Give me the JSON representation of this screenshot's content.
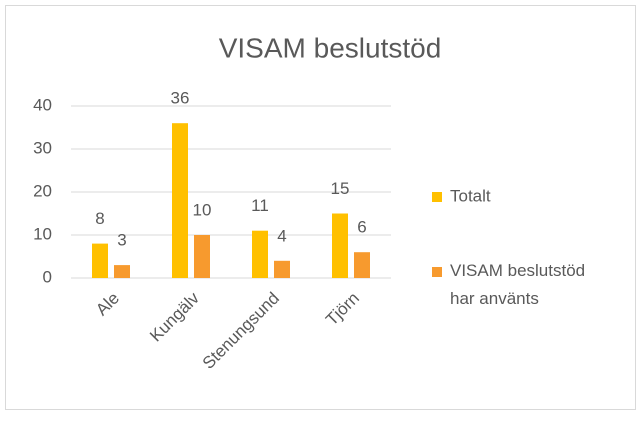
{
  "chart_data": {
    "type": "bar",
    "title": "VISAM beslutstöd",
    "categories": [
      "Ale",
      "Kungälv",
      "Stenungsund",
      "Tjörn"
    ],
    "series": [
      {
        "name": "Totalt",
        "color": "#ffc000",
        "values": [
          8,
          36,
          11,
          15
        ]
      },
      {
        "name": "VISAM beslutstöd har använts",
        "color": "#f79a2e",
        "values": [
          3,
          10,
          4,
          6
        ]
      }
    ],
    "ylim": [
      0,
      40
    ],
    "yticks": [
      0,
      10,
      20,
      30,
      40
    ],
    "grid": true,
    "legend": "right"
  }
}
